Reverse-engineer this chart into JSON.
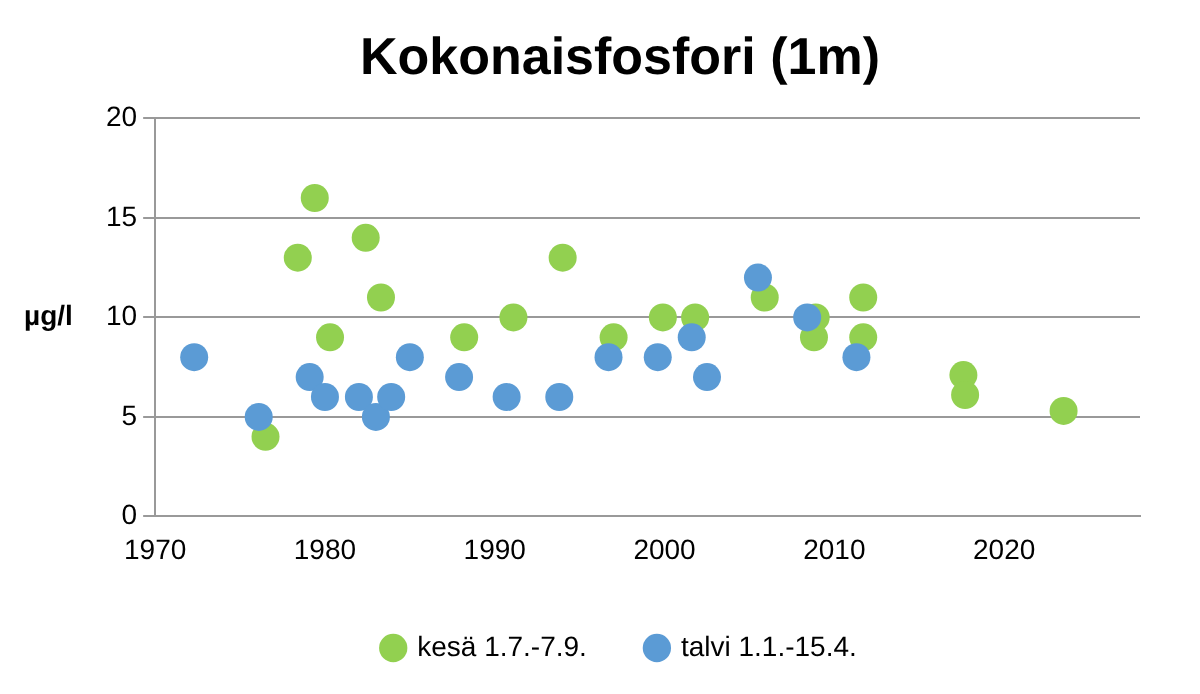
{
  "chart_data": {
    "type": "scatter",
    "title": "Kokonaisfosfori (1m)",
    "ylabel": "µg/l",
    "xlim": [
      1970,
      2028
    ],
    "xticks": [
      1970,
      1980,
      1990,
      2000,
      2010,
      2020
    ],
    "ylim": [
      0,
      20
    ],
    "yticks": [
      0,
      5,
      10,
      15,
      20
    ],
    "grid": "y",
    "legend": "bottom",
    "marker": "circle",
    "series": [
      {
        "name": "kesä 1.7.-7.9.",
        "color": "#92d050",
        "x": [
          1976.5,
          1978.4,
          1979.4,
          1980.3,
          1982.4,
          1983.3,
          1988.2,
          1991.1,
          1994.0,
          1997.0,
          1999.9,
          2001.8,
          2005.9,
          2008.9,
          2008.8,
          2011.7,
          2011.7,
          2017.6,
          2017.7,
          2023.5
        ],
        "values": [
          4,
          13,
          16,
          9,
          14,
          11,
          9,
          10,
          13,
          9,
          10,
          10,
          11,
          10,
          9,
          11,
          9,
          7.1,
          6.1,
          5.3
        ]
      },
      {
        "name": "talvi 1.1.-15.4.",
        "color": "#5b9bd5",
        "x": [
          1972.3,
          1976.1,
          1979.1,
          1980.0,
          1982.0,
          1983.0,
          1983.9,
          1985.0,
          1987.9,
          1990.7,
          1993.8,
          1996.7,
          1999.6,
          2001.6,
          2002.5,
          2005.5,
          2008.4,
          2011.3
        ],
        "values": [
          8,
          5,
          7,
          6,
          6,
          5,
          6,
          8,
          7,
          6,
          6,
          8,
          8,
          9,
          7,
          12,
          10,
          8
        ]
      }
    ]
  }
}
